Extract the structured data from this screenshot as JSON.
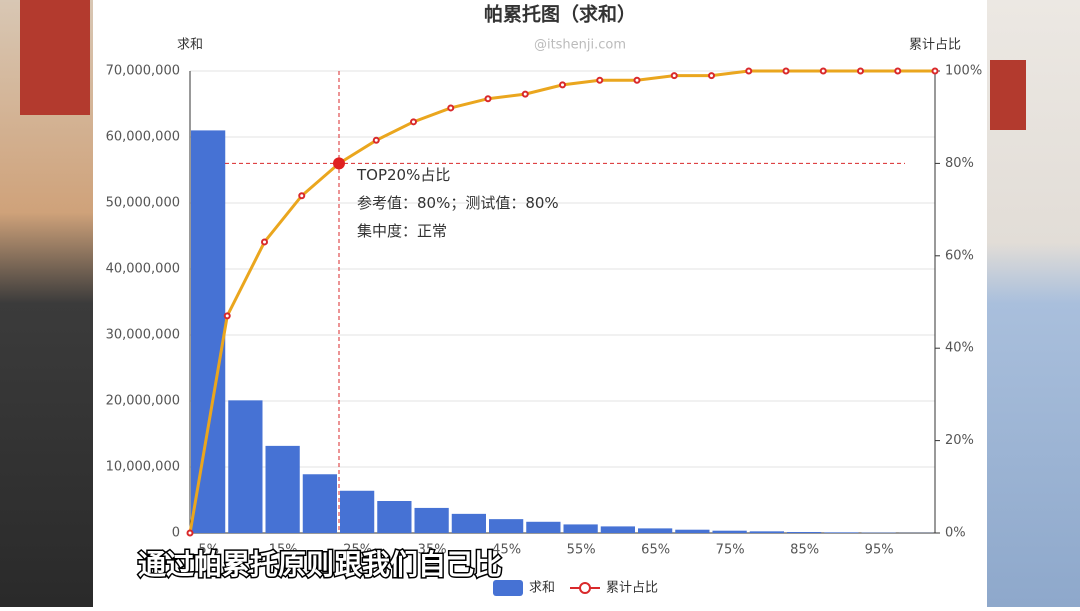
{
  "chart_data": {
    "type": "bar",
    "title": "帕累托图（求和）",
    "watermark": "@itshenji.com",
    "y_label": "求和",
    "y2_label": "累计占比",
    "categories": [
      "5%",
      null,
      "15%",
      null,
      "25%",
      null,
      "35%",
      null,
      "45%",
      null,
      "55%",
      null,
      "65%",
      null,
      "75%",
      null,
      "85%",
      null,
      "95%",
      null
    ],
    "xlim": [
      0,
      100
    ],
    "ylim": [
      0,
      70000000
    ],
    "yticks": [
      0,
      {
        "value": 10000000,
        "label": "10,000,000"
      },
      {
        "value": 20000000,
        "label": "20,000,000"
      },
      {
        "value": 30000000,
        "label": "30,000,000"
      },
      {
        "value": 40000000,
        "label": "40,000,000"
      },
      {
        "value": 50000000,
        "label": "50,000,000"
      },
      {
        "value": 60000000,
        "label": "60,000,000"
      },
      {
        "value": 70000000,
        "label": "70,000,000"
      }
    ],
    "y2lim": [
      0,
      100
    ],
    "y2ticks": [
      {
        "value": 0,
        "label": "0%"
      },
      {
        "value": 20,
        "label": "20%"
      },
      {
        "value": 40,
        "label": "40%"
      },
      {
        "value": 60,
        "label": "60%"
      },
      {
        "value": 80,
        "label": "80%"
      },
      {
        "value": 100,
        "label": "100%"
      }
    ],
    "grid": true,
    "legend": "bottom",
    "series": [
      {
        "name": "求和",
        "color": "#4672d4",
        "values": [
          61000000,
          20100000,
          13200000,
          8900000,
          6400000,
          4850000,
          3800000,
          2900000,
          2100000,
          1700000,
          1300000,
          1000000,
          700000,
          500000,
          350000,
          250000,
          150000,
          100000,
          50000,
          20000
        ]
      },
      {
        "name": "累计占比",
        "type": "line",
        "axis": "y2",
        "color": "#eaa61e",
        "marker_color": "#d9292b",
        "x": [
          0,
          5,
          10,
          15,
          20,
          25,
          30,
          35,
          40,
          45,
          50,
          55,
          60,
          65,
          70,
          75,
          80,
          85,
          90,
          95,
          100
        ],
        "values": [
          0,
          47,
          63,
          73,
          80,
          85,
          89,
          92,
          94,
          95,
          97,
          98,
          98,
          99,
          99,
          100,
          100,
          100,
          100,
          100,
          100
        ]
      }
    ],
    "annotation": {
      "x": 20,
      "y": 80,
      "lines": [
        "TOP20%占比",
        "参考值：80%；测试值：80%",
        "集中度：正常"
      ]
    },
    "caption": "通过帕累托原则跟我们自己比"
  }
}
